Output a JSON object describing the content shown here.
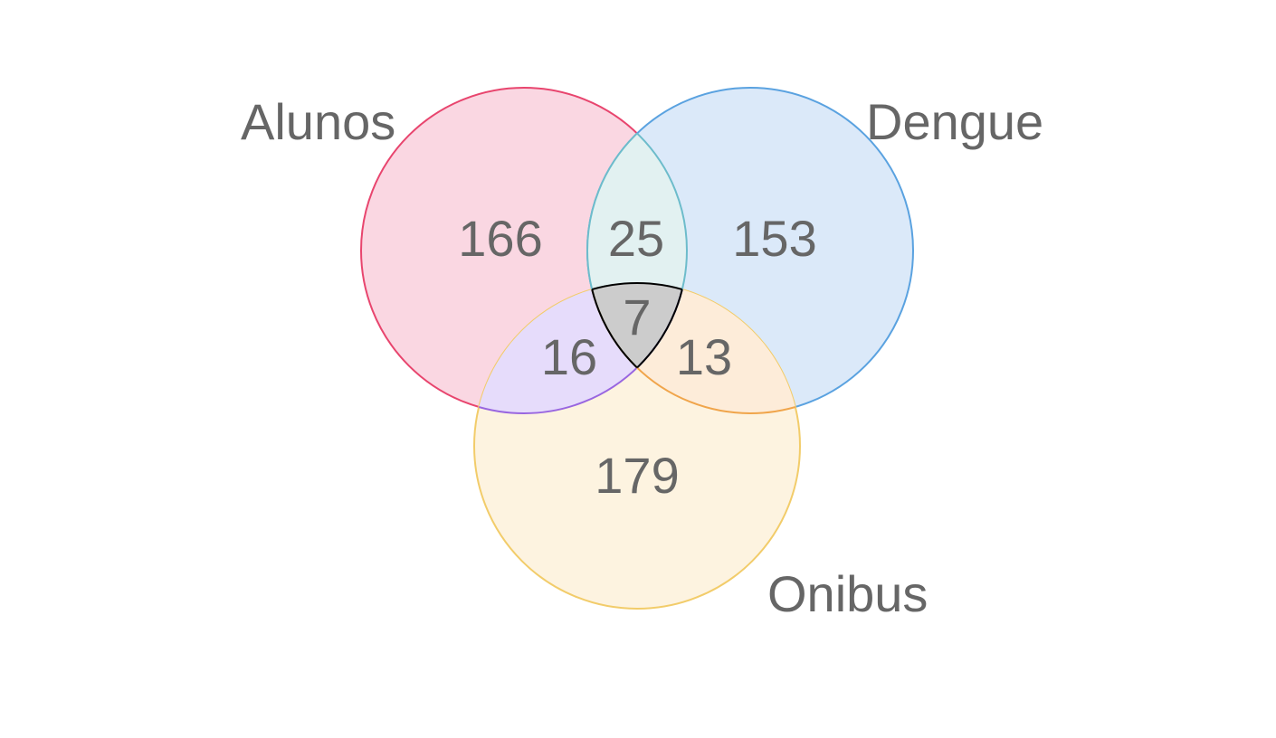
{
  "sets": [
    {
      "key": "a",
      "label": "Alunos",
      "fill": "#fad7e2",
      "stroke": "#e8456e"
    },
    {
      "key": "b",
      "label": "Dengue",
      "fill": "#dbe9f9",
      "stroke": "#5aa2e0"
    },
    {
      "key": "c",
      "label": "Onibus",
      "fill": "#fdf3e0",
      "stroke": "#f2cc6a"
    }
  ],
  "regions": {
    "alunos_only": "166",
    "dengue_only": "153",
    "onibus_only": "179",
    "alunos_dengue": "25",
    "alunos_onibus": "16",
    "dengue_onibus": "13",
    "all_three": "7"
  },
  "overlap_colors": {
    "alunos_dengue": {
      "fill": "#e2f1f1",
      "stroke": "#6dbccb"
    },
    "alunos_onibus": {
      "fill": "#e6dcfb",
      "stroke": "#9966e0"
    },
    "dengue_onibus": {
      "fill": "#fdecd9",
      "stroke": "#f0a54b"
    },
    "all_three": {
      "fill": "#cccccc",
      "stroke": "#000000"
    }
  }
}
